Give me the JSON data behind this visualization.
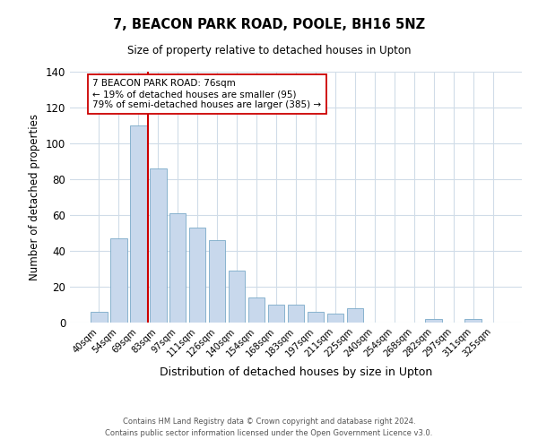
{
  "title": "7, BEACON PARK ROAD, POOLE, BH16 5NZ",
  "subtitle": "Size of property relative to detached houses in Upton",
  "xlabel": "Distribution of detached houses by size in Upton",
  "ylabel": "Number of detached properties",
  "bar_color": "#c8d8ec",
  "bar_edge_color": "#7aaac8",
  "background_color": "#ffffff",
  "grid_color": "#d0dce8",
  "categories": [
    "40sqm",
    "54sqm",
    "69sqm",
    "83sqm",
    "97sqm",
    "111sqm",
    "126sqm",
    "140sqm",
    "154sqm",
    "168sqm",
    "183sqm",
    "197sqm",
    "211sqm",
    "225sqm",
    "240sqm",
    "254sqm",
    "268sqm",
    "282sqm",
    "297sqm",
    "311sqm",
    "325sqm"
  ],
  "values": [
    6,
    47,
    110,
    86,
    61,
    53,
    46,
    29,
    14,
    10,
    10,
    6,
    5,
    8,
    0,
    0,
    0,
    2,
    0,
    2,
    0
  ],
  "ylim": [
    0,
    140
  ],
  "yticks": [
    0,
    20,
    40,
    60,
    80,
    100,
    120,
    140
  ],
  "vline_x": 2.5,
  "vline_color": "#cc0000",
  "annotation_text": "7 BEACON PARK ROAD: 76sqm\n← 19% of detached houses are smaller (95)\n79% of semi-detached houses are larger (385) →",
  "annotation_box_color": "#ffffff",
  "annotation_box_edge": "#cc0000",
  "footer_line1": "Contains HM Land Registry data © Crown copyright and database right 2024.",
  "footer_line2": "Contains public sector information licensed under the Open Government Licence v3.0."
}
